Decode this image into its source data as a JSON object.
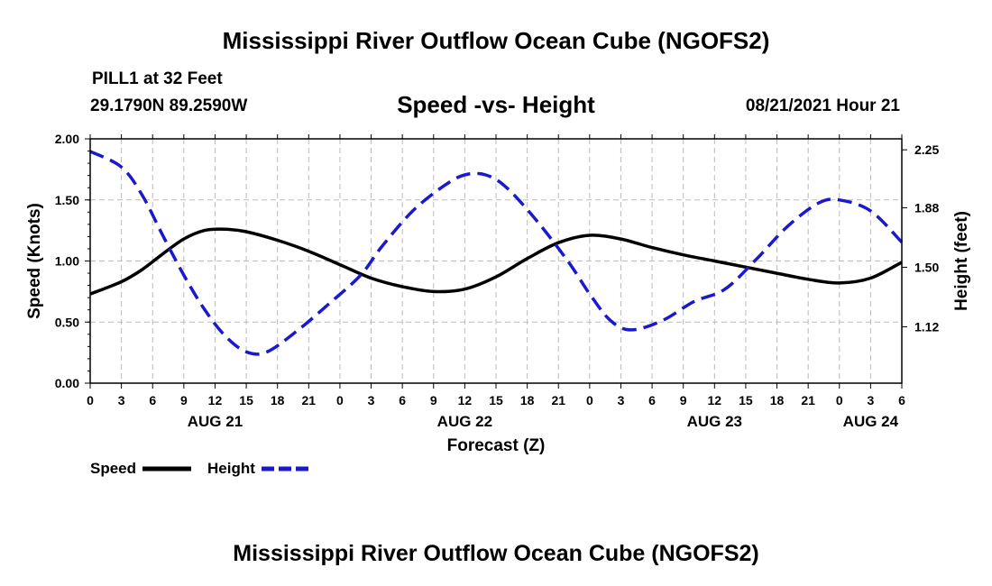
{
  "header": {
    "title_top": "Mississippi River Outflow Ocean Cube (NGOFS2)",
    "station": "PILL1 at 32 Feet",
    "coords": "29.1790N  89.2590W",
    "plot_title": "Speed -vs- Height",
    "datetime": "08/21/2021 Hour 21",
    "title_bottom": "Mississippi River Outflow Ocean Cube (NGOFS2)"
  },
  "legend": {
    "speed_label": "Speed",
    "height_label": "Height"
  },
  "colors": {
    "speed": "#000000",
    "height": "#1a1acc",
    "grid": "#bbbbbb"
  },
  "chart_data": {
    "type": "line",
    "title": "Speed -vs- Height",
    "xlabel": "Forecast (Z)",
    "ylabel": "Speed (Knots)",
    "y2label": "Height (feet)",
    "xlim": [
      0,
      78
    ],
    "ylim": [
      0,
      2
    ],
    "y2lim": [
      0.76,
      2.32
    ],
    "x_ticks": [
      0,
      3,
      6,
      9,
      12,
      15,
      18,
      21,
      24,
      27,
      30,
      33,
      36,
      39,
      42,
      45,
      48,
      51,
      54,
      57,
      60,
      63,
      66,
      69,
      72,
      75,
      78
    ],
    "x_tick_labels": [
      "0",
      "3",
      "6",
      "9",
      "12",
      "15",
      "18",
      "21",
      "0",
      "3",
      "6",
      "9",
      "12",
      "15",
      "18",
      "21",
      "0",
      "3",
      "6",
      "9",
      "12",
      "15",
      "18",
      "21",
      "0",
      "3",
      "6"
    ],
    "y_ticks": [
      0,
      0.5,
      1,
      1.5,
      2
    ],
    "y_tick_labels": [
      "0.00",
      "0.50",
      "1.00",
      "1.50",
      "2.00"
    ],
    "y2_ticks": [
      1.12,
      1.5,
      1.88,
      2.25
    ],
    "y2_tick_labels": [
      "1.12",
      "1.50",
      "1.88",
      "2.25"
    ],
    "date_labels": [
      {
        "x": 12,
        "label": "AUG 21"
      },
      {
        "x": 36,
        "label": "AUG 22"
      },
      {
        "x": 60,
        "label": "AUG 23"
      },
      {
        "x": 75,
        "label": "AUG 24"
      }
    ],
    "grid": true,
    "series": [
      {
        "name": "Speed",
        "axis": "left",
        "style": "solid",
        "x": [
          0,
          3,
          5,
          7,
          9,
          11,
          13,
          15,
          18,
          21,
          24,
          27,
          30,
          33,
          36,
          39,
          42,
          45,
          48,
          51,
          54,
          57,
          60,
          63,
          66,
          69,
          72,
          75,
          78
        ],
        "values": [
          0.73,
          0.83,
          0.93,
          1.06,
          1.18,
          1.25,
          1.26,
          1.24,
          1.17,
          1.08,
          0.97,
          0.86,
          0.79,
          0.75,
          0.77,
          0.87,
          1.02,
          1.15,
          1.21,
          1.18,
          1.11,
          1.05,
          1.0,
          0.95,
          0.9,
          0.85,
          0.82,
          0.86,
          0.99
        ]
      },
      {
        "name": "Height",
        "axis": "right",
        "style": "dashed",
        "x": [
          0,
          3,
          5,
          7,
          9,
          11,
          13,
          15,
          17,
          20,
          23,
          26,
          28,
          31,
          34,
          36,
          38,
          40,
          43,
          46,
          48,
          50,
          52,
          55,
          58,
          61,
          64,
          67,
          70,
          72,
          75,
          78
        ],
        "values": [
          2.24,
          2.14,
          1.96,
          1.7,
          1.45,
          1.23,
          1.06,
          0.96,
          0.96,
          1.1,
          1.27,
          1.45,
          1.63,
          1.86,
          2.02,
          2.09,
          2.09,
          2.01,
          1.79,
          1.53,
          1.33,
          1.16,
          1.1,
          1.16,
          1.28,
          1.36,
          1.55,
          1.76,
          1.91,
          1.93,
          1.86,
          1.66
        ]
      }
    ]
  }
}
